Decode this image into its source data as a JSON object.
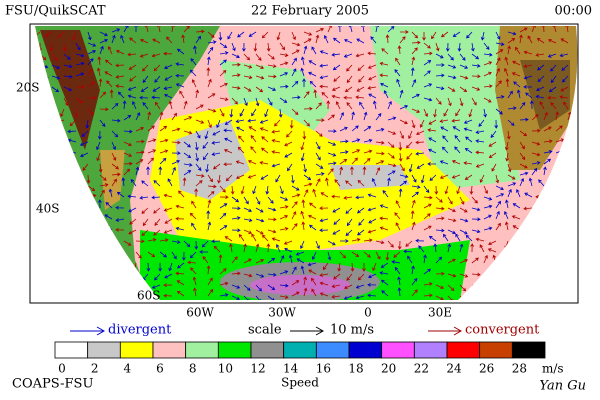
{
  "header": {
    "left": "FSU/QuikSCAT",
    "date": "22 February 2005",
    "time": "00:00"
  },
  "map": {
    "lat_labels": [
      "20S",
      "40S",
      "60S"
    ],
    "lon_labels": [
      "60W",
      "30W",
      "0",
      "30E"
    ]
  },
  "legend": {
    "divergent": "divergent",
    "scale": "scale",
    "scale_value": "10 m/s",
    "convergent": "convergent"
  },
  "colorbar": {
    "colors": [
      "#ffffff",
      "#c8c8c8",
      "#ffff00",
      "#ffc0c0",
      "#a0f0a0",
      "#00e800",
      "#909090",
      "#00b0b0",
      "#3c8cff",
      "#0000d0",
      "#ff50ff",
      "#b080ff",
      "#ff0000",
      "#c84000",
      "#000000"
    ],
    "ticks": [
      0,
      2,
      4,
      6,
      8,
      10,
      12,
      14,
      16,
      18,
      20,
      22,
      24,
      26,
      28
    ],
    "unit": "m/s",
    "label": "Speed"
  },
  "footer": {
    "left": "COAPS-FSU",
    "right": "Yan Gu"
  }
}
